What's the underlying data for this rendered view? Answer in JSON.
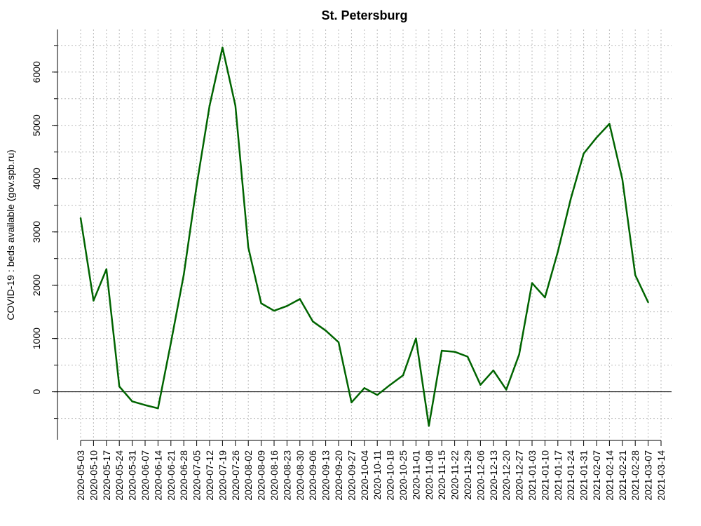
{
  "chart_data": {
    "type": "line",
    "title": "St. Petersburg",
    "xlabel": "",
    "ylabel": "COVID-19 : beds available (gov.spb.ru)",
    "ylim": [
      -900,
      6800
    ],
    "grid": true,
    "zero_line": true,
    "yticks": [
      0,
      1000,
      2000,
      3000,
      4000,
      5000,
      6000
    ],
    "x_tick_labels": [
      "2020-05-03",
      "2020-05-10",
      "2020-05-17",
      "2020-05-24",
      "2020-05-31",
      "2020-06-07",
      "2020-06-14",
      "2020-06-21",
      "2020-06-28",
      "2020-07-05",
      "2020-07-12",
      "2020-07-19",
      "2020-07-26",
      "2020-08-02",
      "2020-08-09",
      "2020-08-16",
      "2020-08-23",
      "2020-08-30",
      "2020-09-06",
      "2020-09-13",
      "2020-09-20",
      "2020-09-27",
      "2020-10-04",
      "2020-10-11",
      "2020-10-18",
      "2020-10-25",
      "2020-11-01",
      "2020-11-08",
      "2020-11-15",
      "2020-11-22",
      "2020-11-29",
      "2020-12-06",
      "2020-12-13",
      "2020-12-20",
      "2020-12-27",
      "2021-01-03",
      "2021-01-10",
      "2021-01-17",
      "2021-01-24",
      "2021-01-31",
      "2021-02-07",
      "2021-02-14",
      "2021-02-21",
      "2021-02-28",
      "2021-03-07",
      "2021-03-14"
    ],
    "series": [
      {
        "color": "#006400",
        "x": [
          "2020-05-03",
          "2020-05-10",
          "2020-05-17",
          "2020-05-24",
          "2020-05-31",
          "2020-06-07",
          "2020-06-14",
          "2020-06-21",
          "2020-06-28",
          "2020-07-05",
          "2020-07-12",
          "2020-07-19",
          "2020-07-26",
          "2020-08-02",
          "2020-08-09",
          "2020-08-16",
          "2020-08-23",
          "2020-08-30",
          "2020-09-06",
          "2020-09-13",
          "2020-09-20",
          "2020-09-27",
          "2020-10-04",
          "2020-10-11",
          "2020-10-18",
          "2020-10-25",
          "2020-11-01",
          "2020-11-08",
          "2020-11-15",
          "2020-11-22",
          "2020-11-29",
          "2020-12-06",
          "2020-12-13",
          "2020-12-20",
          "2020-12-27",
          "2021-01-03",
          "2021-01-10",
          "2021-01-17",
          "2021-01-24",
          "2021-01-31",
          "2021-02-07",
          "2021-02-14",
          "2021-02-21",
          "2021-02-28",
          "2021-03-07"
        ],
        "values": [
          3260,
          1710,
          2300,
          100,
          -180,
          -250,
          -310,
          920,
          2200,
          3880,
          5370,
          6460,
          5370,
          2710,
          1660,
          1520,
          1610,
          1740,
          1320,
          1150,
          930,
          -200,
          70,
          -60,
          130,
          310,
          1000,
          -640,
          770,
          750,
          660,
          130,
          400,
          40,
          700,
          2040,
          1770,
          2630,
          3620,
          4470,
          4770,
          5030,
          3990,
          2190,
          1680
        ]
      }
    ]
  }
}
